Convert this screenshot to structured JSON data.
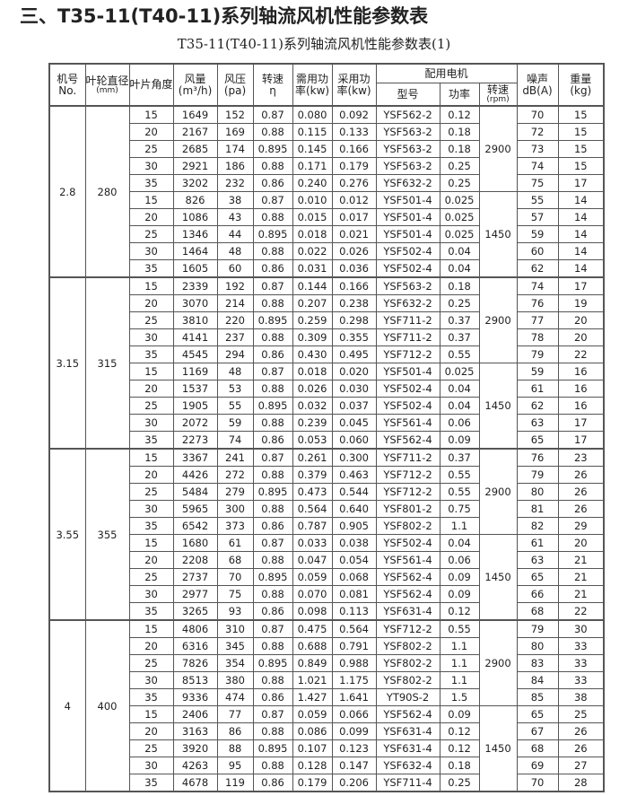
{
  "title": "三、T35-11(T40-11)系列轴流风机性能参数表",
  "subtitle": "T35-11(T40-11)系列轴流风机性能参数表(1)",
  "headers": {
    "no": "机号",
    "no_en": "No.",
    "dia": "叶轮直径",
    "dia_unit": "(mm)",
    "angle": "叶片角度",
    "flow": "风量",
    "flow_unit": "(m³/h)",
    "pressure": "风压",
    "pressure_unit": "(pa)",
    "speed": "转速",
    "speed_sym": "η",
    "req": "需用功",
    "req2": "率(kw)",
    "used": "采用功",
    "used2": "率(kw)",
    "motor": "配用电机",
    "model": "型号",
    "power": "功率",
    "mspeed": "转速",
    "mspeed_unit": "(rpm)",
    "noise": "噪声",
    "noise_unit": "dB(A)",
    "weight": "重量",
    "weight_unit": "(kg)"
  },
  "groups": [
    {
      "no": "2.8",
      "dia": "280",
      "blocks": [
        {
          "speed": "2900",
          "rows": [
            [
              "15",
              "1649",
              "152",
              "0.87",
              "0.080",
              "0.092",
              "YSF562-2",
              "0.12",
              "70",
              "15"
            ],
            [
              "20",
              "2167",
              "169",
              "0.88",
              "0.115",
              "0.133",
              "YSF563-2",
              "0.18",
              "72",
              "15"
            ],
            [
              "25",
              "2685",
              "174",
              "0.895",
              "0.145",
              "0.166",
              "YSF563-2",
              "0.18",
              "73",
              "15"
            ],
            [
              "30",
              "2921",
              "186",
              "0.88",
              "0.171",
              "0.179",
              "YSF563-2",
              "0.25",
              "74",
              "15"
            ],
            [
              "35",
              "3202",
              "232",
              "0.86",
              "0.240",
              "0.276",
              "YSF632-2",
              "0.25",
              "75",
              "17"
            ]
          ]
        },
        {
          "speed": "1450",
          "rows": [
            [
              "15",
              "826",
              "38",
              "0.87",
              "0.010",
              "0.012",
              "YSF501-4",
              "0.025",
              "55",
              "14"
            ],
            [
              "20",
              "1086",
              "43",
              "0.88",
              "0.015",
              "0.017",
              "YSF501-4",
              "0.025",
              "57",
              "14"
            ],
            [
              "25",
              "1346",
              "44",
              "0.895",
              "0.018",
              "0.021",
              "YSF501-4",
              "0.025",
              "59",
              "14"
            ],
            [
              "30",
              "1464",
              "48",
              "0.88",
              "0.022",
              "0.026",
              "YSF502-4",
              "0.04",
              "60",
              "14"
            ],
            [
              "35",
              "1605",
              "60",
              "0.86",
              "0.031",
              "0.036",
              "YSF502-4",
              "0.04",
              "62",
              "14"
            ]
          ]
        }
      ]
    },
    {
      "no": "3.15",
      "dia": "315",
      "blocks": [
        {
          "speed": "2900",
          "rows": [
            [
              "15",
              "2339",
              "192",
              "0.87",
              "0.144",
              "0.166",
              "YSF563-2",
              "0.18",
              "74",
              "17"
            ],
            [
              "20",
              "3070",
              "214",
              "0.88",
              "0.207",
              "0.238",
              "YSF632-2",
              "0.25",
              "76",
              "19"
            ],
            [
              "25",
              "3810",
              "220",
              "0.895",
              "0.259",
              "0.298",
              "YSF711-2",
              "0.37",
              "77",
              "20"
            ],
            [
              "30",
              "4141",
              "237",
              "0.88",
              "0.309",
              "0.355",
              "YSF711-2",
              "0.37",
              "78",
              "20"
            ],
            [
              "35",
              "4545",
              "294",
              "0.86",
              "0.430",
              "0.495",
              "YSF712-2",
              "0.55",
              "79",
              "22"
            ]
          ]
        },
        {
          "speed": "1450",
          "rows": [
            [
              "15",
              "1169",
              "48",
              "0.87",
              "0.018",
              "0.020",
              "YSF501-4",
              "0.025",
              "59",
              "16"
            ],
            [
              "20",
              "1537",
              "53",
              "0.88",
              "0.026",
              "0.030",
              "YSF502-4",
              "0.04",
              "61",
              "16"
            ],
            [
              "25",
              "1905",
              "55",
              "0.895",
              "0.032",
              "0.037",
              "YSF502-4",
              "0.04",
              "62",
              "16"
            ],
            [
              "30",
              "2072",
              "59",
              "0.88",
              "0.239",
              "0.045",
              "YSF561-4",
              "0.06",
              "63",
              "17"
            ],
            [
              "35",
              "2273",
              "74",
              "0.86",
              "0.053",
              "0.060",
              "YSF562-4",
              "0.09",
              "65",
              "17"
            ]
          ]
        }
      ]
    },
    {
      "no": "3.55",
      "dia": "355",
      "blocks": [
        {
          "speed": "2900",
          "rows": [
            [
              "15",
              "3367",
              "241",
              "0.87",
              "0.261",
              "0.300",
              "YSF711-2",
              "0.37",
              "76",
              "23"
            ],
            [
              "20",
              "4426",
              "272",
              "0.88",
              "0.379",
              "0.463",
              "YSF712-2",
              "0.55",
              "79",
              "26"
            ],
            [
              "25",
              "5484",
              "279",
              "0.895",
              "0.473",
              "0.544",
              "YSF712-2",
              "0.55",
              "80",
              "26"
            ],
            [
              "30",
              "5965",
              "300",
              "0.88",
              "0.564",
              "0.640",
              "YSF801-2",
              "0.75",
              "81",
              "26"
            ],
            [
              "35",
              "6542",
              "373",
              "0.86",
              "0.787",
              "0.905",
              "YSF802-2",
              "1.1",
              "82",
              "29"
            ]
          ]
        },
        {
          "speed": "1450",
          "rows": [
            [
              "15",
              "1680",
              "61",
              "0.87",
              "0.033",
              "0.038",
              "YSF502-4",
              "0.04",
              "61",
              "20"
            ],
            [
              "20",
              "2208",
              "68",
              "0.88",
              "0.047",
              "0.054",
              "YSF561-4",
              "0.06",
              "63",
              "21"
            ],
            [
              "25",
              "2737",
              "70",
              "0.895",
              "0.059",
              "0.068",
              "YSF562-4",
              "0.09",
              "65",
              "21"
            ],
            [
              "30",
              "2977",
              "75",
              "0.88",
              "0.070",
              "0.081",
              "YSF562-4",
              "0.09",
              "66",
              "21"
            ],
            [
              "35",
              "3265",
              "93",
              "0.86",
              "0.098",
              "0.113",
              "YSF631-4",
              "0.12",
              "68",
              "22"
            ]
          ]
        }
      ]
    },
    {
      "no": "4",
      "dia": "400",
      "blocks": [
        {
          "speed": "2900",
          "rows": [
            [
              "15",
              "4806",
              "310",
              "0.87",
              "0.475",
              "0.564",
              "YSF712-2",
              "0.55",
              "79",
              "30"
            ],
            [
              "20",
              "6316",
              "345",
              "0.88",
              "0.688",
              "0.791",
              "YSF802-2",
              "1.1",
              "80",
              "33"
            ],
            [
              "25",
              "7826",
              "354",
              "0.895",
              "0.849",
              "0.988",
              "YSF802-2",
              "1.1",
              "83",
              "33"
            ],
            [
              "30",
              "8513",
              "380",
              "0.88",
              "1.021",
              "1.175",
              "YSF802-2",
              "1.1",
              "84",
              "33"
            ],
            [
              "35",
              "9336",
              "474",
              "0.86",
              "1.427",
              "1.641",
              "YT90S-2",
              "1.5",
              "85",
              "38"
            ]
          ]
        },
        {
          "speed": "1450",
          "rows": [
            [
              "15",
              "2406",
              "77",
              "0.87",
              "0.059",
              "0.066",
              "YSF562-4",
              "0.09",
              "65",
              "25"
            ],
            [
              "20",
              "3163",
              "86",
              "0.88",
              "0.086",
              "0.099",
              "YSF631-4",
              "0.12",
              "67",
              "26"
            ],
            [
              "25",
              "3920",
              "88",
              "0.895",
              "0.107",
              "0.123",
              "YSF631-4",
              "0.12",
              "68",
              "26"
            ],
            [
              "30",
              "4263",
              "95",
              "0.88",
              "0.128",
              "0.147",
              "YSF632-4",
              "0.18",
              "69",
              "27"
            ],
            [
              "35",
              "4678",
              "119",
              "0.86",
              "0.179",
              "0.206",
              "YSF711-4",
              "0.25",
              "70",
              "28"
            ]
          ]
        }
      ]
    }
  ]
}
